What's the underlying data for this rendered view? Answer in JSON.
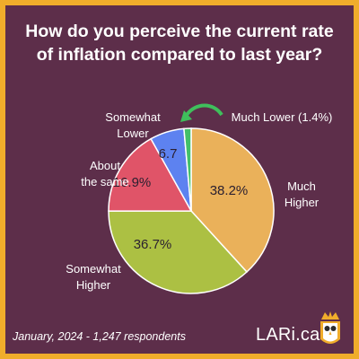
{
  "title_lines": [
    "How do you perceive the current rate",
    "of inflation compared to last year?"
  ],
  "chart_data": {
    "type": "pie",
    "start_angle": "12 o'clock, clockwise",
    "slices": [
      {
        "name": "Much Higher",
        "value": 38.2,
        "label": "38.2%",
        "color": "#eab15a",
        "label_lines": [
          "Much",
          "Higher"
        ]
      },
      {
        "name": "Somewhat Higher",
        "value": 36.7,
        "label": "36.7%",
        "color": "#acc043",
        "label_lines": [
          "Somewhat",
          "Higher"
        ]
      },
      {
        "name": "About the same",
        "value": 16.9,
        "label": "16.9%",
        "color": "#e05468",
        "label_lines": [
          "About",
          "the same"
        ]
      },
      {
        "name": "Somewhat Lower",
        "value": 6.7,
        "label": "6.7",
        "color": "#5d82f0",
        "label_lines": [
          "Somewhat",
          "Lower"
        ]
      },
      {
        "name": "Much Lower",
        "value": 1.4,
        "label": "",
        "color": "#42c06a",
        "label_lines": [
          "Much Lower (1.4%)"
        ]
      }
    ]
  },
  "footer": {
    "note": "January, 2024 - 1,247 respondents",
    "brand": "LARi.ca"
  },
  "colors": {
    "background": "#5d2e4a",
    "frame": "#f0ad2b",
    "arrow": "#3fbf5c"
  },
  "icons": {
    "logo": "owl-logo-icon",
    "arrow": "curved-arrow-icon"
  }
}
